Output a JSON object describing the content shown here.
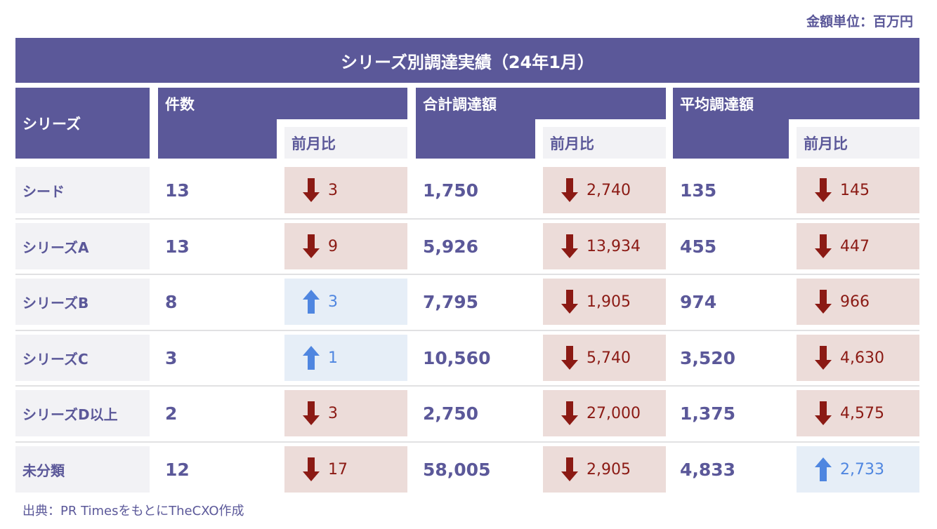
{
  "unit_note": "金額単位：百万円",
  "title": "シリーズ別調達実績（24年1月）",
  "headers": {
    "series": "シリーズ",
    "count": "件数",
    "total": "合計調達額",
    "average": "平均調達額",
    "mom": "前月比"
  },
  "colors": {
    "header_purple": "#5b5899",
    "decrease_bg": "#ecdcd9",
    "decrease_fg": "#8b1a14",
    "increase_bg": "#e6eef7",
    "increase_fg": "#4f86e0",
    "label_bg": "#f2f2f5"
  },
  "rows": [
    {
      "series": "シード",
      "count": "13",
      "count_mom": "3",
      "count_dir": "down",
      "total": "1,750",
      "total_mom": "2,740",
      "total_dir": "down",
      "avg": "135",
      "avg_mom": "145",
      "avg_dir": "down"
    },
    {
      "series": "シリーズA",
      "count": "13",
      "count_mom": "9",
      "count_dir": "down",
      "total": "5,926",
      "total_mom": "13,934",
      "total_dir": "down",
      "avg": "455",
      "avg_mom": "447",
      "avg_dir": "down"
    },
    {
      "series": "シリーズB",
      "count": "8",
      "count_mom": "3",
      "count_dir": "up",
      "total": "7,795",
      "total_mom": "1,905",
      "total_dir": "down",
      "avg": "974",
      "avg_mom": "966",
      "avg_dir": "down"
    },
    {
      "series": "シリーズC",
      "count": "3",
      "count_mom": "1",
      "count_dir": "up",
      "total": "10,560",
      "total_mom": "5,740",
      "total_dir": "down",
      "avg": "3,520",
      "avg_mom": "4,630",
      "avg_dir": "down"
    },
    {
      "series": "シリーズD以上",
      "count": "2",
      "count_mom": "3",
      "count_dir": "down",
      "total": "2,750",
      "total_mom": "27,000",
      "total_dir": "down",
      "avg": "1,375",
      "avg_mom": "4,575",
      "avg_dir": "down"
    },
    {
      "series": "未分類",
      "count": "12",
      "count_mom": "17",
      "count_dir": "down",
      "total": "58,005",
      "total_mom": "2,905",
      "total_dir": "down",
      "avg": "4,833",
      "avg_mom": "2,733",
      "avg_dir": "up"
    }
  ],
  "source": "出典：PR TimesをもとにTheCXO作成"
}
